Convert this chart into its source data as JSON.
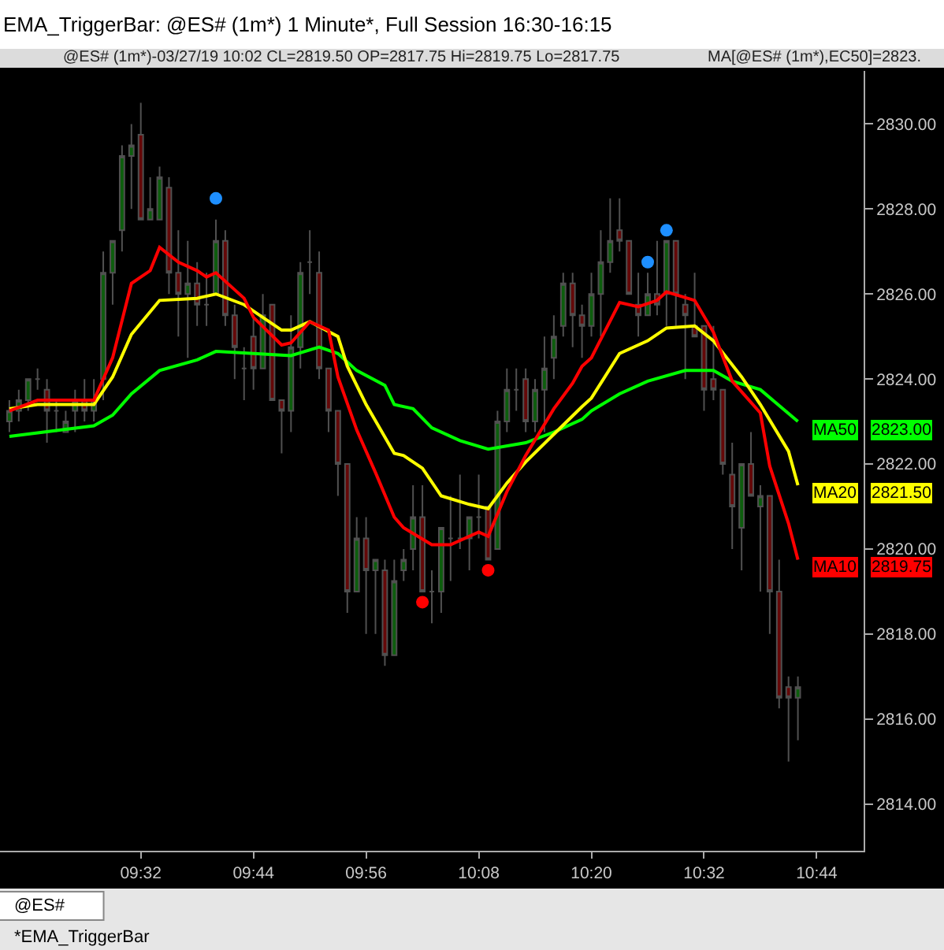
{
  "chart_data": {
    "type": "candlestick",
    "title": "EMA_TriggerBar: @ES# (1m*) 1 Minute*, Full Session 16:30-16:15",
    "x": [
      "--03-27T09:18",
      "--03-27T09:19",
      "--03-27T09:20",
      "--03-27T09:21",
      "--03-27T09:22",
      "--03-27T09:23",
      "--03-27T09:24",
      "--03-27T09:25",
      "--03-27T09:26",
      "--03-27T09:27",
      "--03-27T09:28",
      "--03-27T09:29",
      "--03-27T09:30",
      "--03-27T09:31",
      "--03-27T09:32",
      "--03-27T09:33",
      "--03-27T09:34",
      "--03-27T09:35",
      "--03-27T09:36",
      "--03-27T09:37",
      "--03-27T09:38",
      "--03-27T09:39",
      "--03-27T09:40",
      "--03-27T09:41",
      "--03-27T09:42",
      "--03-27T09:43",
      "--03-27T09:44",
      "--03-27T09:45",
      "--03-27T09:46",
      "--03-27T09:47",
      "--03-27T09:48",
      "--03-27T09:49",
      "--03-27T09:50",
      "--03-27T09:51",
      "--03-27T09:52",
      "--03-27T09:53",
      "--03-27T09:54",
      "--03-27T09:55",
      "--03-27T09:56",
      "--03-27T09:57",
      "--03-27T09:58",
      "--03-27T09:59",
      "--03-27T10:00",
      "--03-27T10:01",
      "--03-27T10:02",
      "--03-27T10:03",
      "--03-27T10:04",
      "--03-27T10:05",
      "--03-27T10:06",
      "--03-27T10:07",
      "--03-27T10:08",
      "--03-27T10:09",
      "--03-27T10:10",
      "--03-27T10:11",
      "--03-27T10:12",
      "--03-27T10:13",
      "--03-27T10:14",
      "--03-27T10:15",
      "--03-27T10:16",
      "--03-27T10:17",
      "--03-27T10:18",
      "--03-27T10:19",
      "--03-27T10:20",
      "--03-27T10:21",
      "--03-27T10:22",
      "--03-27T10:23",
      "--03-27T10:24",
      "--03-27T10:25",
      "--03-27T10:26",
      "--03-27T10:27",
      "--03-27T10:28",
      "--03-27T10:29",
      "--03-27T10:30",
      "--03-27T10:31",
      "--03-27T10:32",
      "--03-27T10:33",
      "--03-27T10:34",
      "--03-27T10:35",
      "--03-27T10:36",
      "--03-27T10:37",
      "--03-27T10:38",
      "--03-27T10:39",
      "--03-27T10:40",
      "--03-27T10:41",
      "--03-27T10:42"
    ],
    "ohlc": [
      [
        2823.0,
        2823.5,
        2822.75,
        2823.25
      ],
      [
        2823.25,
        2823.75,
        2823.0,
        2823.5
      ],
      [
        2823.5,
        2824.0,
        2823.25,
        2824.0
      ],
      [
        2824.0,
        2824.25,
        2823.75,
        2824.0
      ],
      [
        2823.75,
        2824.0,
        2822.5,
        2823.25
      ],
      [
        2823.25,
        2823.5,
        2822.75,
        2823.25
      ],
      [
        2822.75,
        2823.25,
        2822.75,
        2823.0
      ],
      [
        2823.25,
        2823.75,
        2822.75,
        2823.5
      ],
      [
        2823.5,
        2824.0,
        2823.0,
        2823.25
      ],
      [
        2823.25,
        2824.0,
        2823.0,
        2823.5
      ],
      [
        2824.0,
        2827.0,
        2823.5,
        2826.5
      ],
      [
        2826.5,
        2827.25,
        2825.75,
        2827.25
      ],
      [
        2827.5,
        2829.5,
        2827.0,
        2829.25
      ],
      [
        2829.25,
        2830.0,
        2828.0,
        2829.5
      ],
      [
        2829.75,
        2830.5,
        2827.75,
        2827.75
      ],
      [
        2827.75,
        2828.75,
        2827.75,
        2828.0
      ],
      [
        2827.75,
        2829.0,
        2827.75,
        2828.75
      ],
      [
        2828.5,
        2828.75,
        2826.0,
        2826.5
      ],
      [
        2826.5,
        2827.5,
        2825.0,
        2826.0
      ],
      [
        2826.0,
        2827.25,
        2824.5,
        2826.25
      ],
      [
        2826.25,
        2826.75,
        2825.25,
        2825.75
      ],
      [
        2825.75,
        2826.5,
        2825.25,
        2825.75
      ],
      [
        2826.0,
        2827.75,
        2826.0,
        2827.25
      ],
      [
        2827.25,
        2827.5,
        2825.25,
        2825.5
      ],
      [
        2825.5,
        2825.75,
        2824.0,
        2824.75
      ],
      [
        2824.25,
        2824.75,
        2823.5,
        2824.25
      ],
      [
        2825.0,
        2825.5,
        2823.75,
        2824.25
      ],
      [
        2824.25,
        2826.0,
        2824.25,
        2825.5
      ],
      [
        2825.75,
        2825.75,
        2823.5,
        2823.5
      ],
      [
        2823.5,
        2823.5,
        2822.25,
        2823.25
      ],
      [
        2823.25,
        2825.5,
        2822.75,
        2824.75
      ],
      [
        2824.75,
        2826.75,
        2824.25,
        2826.5
      ],
      [
        2826.75,
        2827.5,
        2826.0,
        2826.75
      ],
      [
        2826.5,
        2827.0,
        2824.0,
        2824.25
      ],
      [
        2824.25,
        2824.25,
        2822.75,
        2823.25
      ],
      [
        2823.25,
        2823.25,
        2821.25,
        2822.0
      ],
      [
        2822.0,
        2822.0,
        2818.5,
        2819.0
      ],
      [
        2819.0,
        2820.75,
        2819.0,
        2820.25
      ],
      [
        2820.25,
        2820.75,
        2818.0,
        2819.5
      ],
      [
        2819.5,
        2819.75,
        2818.0,
        2819.75
      ],
      [
        2819.5,
        2819.75,
        2817.25,
        2817.5
      ],
      [
        2817.5,
        2819.75,
        2817.5,
        2819.25
      ],
      [
        2819.5,
        2820.0,
        2819.25,
        2819.75
      ],
      [
        2820.0,
        2821.5,
        2819.5,
        2820.75
      ],
      [
        2820.75,
        2821.5,
        2819.0,
        2819.0
      ],
      [
        2819.0,
        2819.5,
        2818.25,
        2819.0
      ],
      [
        2819.0,
        2820.5,
        2818.5,
        2820.5
      ],
      [
        2820.25,
        2821.25,
        2819.25,
        2820.25
      ],
      [
        2820.25,
        2821.75,
        2820.0,
        2820.25
      ],
      [
        2820.25,
        2820.75,
        2819.5,
        2820.75
      ],
      [
        2820.75,
        2821.75,
        2820.25,
        2820.75
      ],
      [
        2821.0,
        2821.0,
        2819.75,
        2819.75
      ],
      [
        2820.0,
        2823.25,
        2820.0,
        2823.0
      ],
      [
        2823.0,
        2824.25,
        2822.75,
        2823.75
      ],
      [
        2823.75,
        2824.25,
        2823.25,
        2823.75
      ],
      [
        2824.0,
        2824.25,
        2822.75,
        2823.0
      ],
      [
        2823.0,
        2824.0,
        2822.75,
        2823.75
      ],
      [
        2823.75,
        2825.0,
        2822.75,
        2824.25
      ],
      [
        2824.5,
        2825.5,
        2824.0,
        2825.0
      ],
      [
        2825.25,
        2826.5,
        2825.0,
        2826.25
      ],
      [
        2826.25,
        2826.5,
        2824.75,
        2825.5
      ],
      [
        2825.5,
        2825.75,
        2824.5,
        2825.25
      ],
      [
        2825.25,
        2826.5,
        2825.0,
        2826.0
      ],
      [
        2826.0,
        2827.5,
        2825.0,
        2826.75
      ],
      [
        2826.75,
        2828.25,
        2826.5,
        2827.25
      ],
      [
        2827.5,
        2828.25,
        2827.0,
        2827.25
      ],
      [
        2827.25,
        2827.25,
        2826.0,
        2826.0
      ],
      [
        2825.75,
        2826.5,
        2825.0,
        2825.5
      ],
      [
        2825.5,
        2826.5,
        2825.5,
        2826.0
      ],
      [
        2826.0,
        2827.25,
        2825.5,
        2825.75
      ],
      [
        2826.0,
        2827.25,
        2825.25,
        2827.25
      ],
      [
        2827.25,
        2827.25,
        2825.25,
        2826.0
      ],
      [
        2825.75,
        2826.0,
        2824.0,
        2825.5
      ],
      [
        2825.25,
        2826.5,
        2825.0,
        2825.0
      ],
      [
        2825.25,
        2825.25,
        2823.25,
        2823.75
      ],
      [
        2824.0,
        2825.25,
        2823.5,
        2823.75
      ],
      [
        2823.75,
        2823.75,
        2821.75,
        2822.0
      ],
      [
        2821.75,
        2822.5,
        2820.0,
        2821.0
      ],
      [
        2820.5,
        2822.0,
        2819.5,
        2822.0
      ],
      [
        2822.0,
        2822.75,
        2821.25,
        2821.25
      ],
      [
        2821.0,
        2821.5,
        2819.0,
        2821.25
      ],
      [
        2821.25,
        2821.25,
        2818.0,
        2819.0
      ],
      [
        2819.0,
        2819.75,
        2816.25,
        2816.5
      ],
      [
        2816.75,
        2817.0,
        2815.0,
        2816.5
      ],
      [
        2816.5,
        2817.0,
        2815.5,
        2816.75
      ]
    ],
    "series": [
      {
        "name": "MA50",
        "type": "line",
        "color": "#00ff00",
        "x": [
          "--03-27T09:18",
          "--03-27T09:27",
          "--03-27T09:29",
          "--03-27T09:31",
          "--03-27T09:34",
          "--03-27T09:38",
          "--03-27T09:40",
          "--03-27T09:44",
          "--03-27T09:48",
          "--03-27T09:51",
          "--03-27T09:53",
          "--03-27T09:55",
          "--03-27T09:58",
          "--03-27T09:59",
          "--03-27T10:01",
          "--03-27T10:03",
          "--03-27T10:06",
          "--03-27T10:09",
          "--03-27T10:13",
          "--03-27T10:16",
          "--03-27T10:19",
          "--03-27T10:20",
          "--03-27T10:23",
          "--03-27T10:26",
          "--03-27T10:30",
          "--03-27T10:33",
          "--03-27T10:35",
          "--03-27T10:38",
          "--03-27T10:42"
        ],
        "values": [
          2822.65,
          2822.9,
          2823.15,
          2823.65,
          2824.2,
          2824.45,
          2824.65,
          2824.6,
          2824.55,
          2824.75,
          2824.6,
          2824.2,
          2823.85,
          2823.4,
          2823.3,
          2822.85,
          2822.55,
          2822.35,
          2822.5,
          2822.75,
          2823.05,
          2823.25,
          2823.65,
          2823.95,
          2824.2,
          2824.2,
          2823.95,
          2823.75,
          2823.0
        ]
      },
      {
        "name": "MA20",
        "type": "line",
        "color": "#ffff00",
        "x": [
          "--03-27T09:18",
          "--03-27T09:21",
          "--03-27T09:27",
          "--03-27T09:29",
          "--03-27T09:31",
          "--03-27T09:34",
          "--03-27T09:38",
          "--03-27T09:40",
          "--03-27T09:43",
          "--03-27T09:44",
          "--03-27T09:47",
          "--03-27T09:48",
          "--03-27T09:50",
          "--03-27T09:53",
          "--03-27T09:54",
          "--03-27T09:56",
          "--03-27T09:59",
          "--03-27T10:00",
          "--03-27T10:02",
          "--03-27T10:04",
          "--03-27T10:07",
          "--03-27T10:09",
          "--03-27T10:11",
          "--03-27T10:13",
          "--03-27T10:16",
          "--03-27T10:19",
          "--03-27T10:20",
          "--03-27T10:23",
          "--03-27T10:26",
          "--03-27T10:28",
          "--03-27T10:31",
          "--03-27T10:33",
          "--03-27T10:36",
          "--03-27T10:38",
          "--03-27T10:41",
          "--03-27T10:42"
        ],
        "values": [
          2823.3,
          2823.4,
          2823.4,
          2824.05,
          2825.05,
          2825.85,
          2825.9,
          2826.0,
          2825.75,
          2825.6,
          2825.15,
          2825.15,
          2825.35,
          2825.0,
          2824.3,
          2823.4,
          2822.25,
          2822.2,
          2821.9,
          2821.25,
          2821.05,
          2820.95,
          2821.55,
          2822.05,
          2822.7,
          2823.35,
          2823.55,
          2824.6,
          2824.9,
          2825.2,
          2825.25,
          2824.9,
          2824.05,
          2823.4,
          2822.3,
          2821.5
        ]
      },
      {
        "name": "MA10",
        "type": "line",
        "color": "#ff0000",
        "x": [
          "--03-27T09:18",
          "--03-27T09:21",
          "--03-27T09:27",
          "--03-27T09:29",
          "--03-27T09:31",
          "--03-27T09:33",
          "--03-27T09:34",
          "--03-27T09:36",
          "--03-27T09:38",
          "--03-27T09:39",
          "--03-27T09:40",
          "--03-27T09:43",
          "--03-27T09:44",
          "--03-27T09:47",
          "--03-27T09:48",
          "--03-27T09:50",
          "--03-27T09:52",
          "--03-27T09:53",
          "--03-27T09:55",
          "--03-27T09:57",
          "--03-27T09:59",
          "--03-27T10:00",
          "--03-27T10:03",
          "--03-27T10:05",
          "--03-27T10:08",
          "--03-27T10:09",
          "--03-27T10:11",
          "--03-27T10:13",
          "--03-27T10:16",
          "--03-27T10:18",
          "--03-27T10:19",
          "--03-27T10:20",
          "--03-27T10:23",
          "--03-27T10:25",
          "--03-27T10:27",
          "--03-27T10:28",
          "--03-27T10:31",
          "--03-27T10:33",
          "--03-27T10:35",
          "--03-27T10:38",
          "--03-27T10:39",
          "--03-27T10:41",
          "--03-27T10:42"
        ],
        "values": [
          2823.25,
          2823.5,
          2823.5,
          2824.5,
          2826.25,
          2826.55,
          2827.1,
          2826.75,
          2826.55,
          2826.4,
          2826.5,
          2825.9,
          2825.45,
          2824.8,
          2824.85,
          2825.35,
          2825.15,
          2824.05,
          2822.8,
          2821.8,
          2820.75,
          2820.5,
          2820.1,
          2820.1,
          2820.4,
          2820.3,
          2821.35,
          2822.2,
          2823.3,
          2823.9,
          2824.3,
          2824.5,
          2825.8,
          2825.7,
          2825.85,
          2826.05,
          2825.85,
          2825.1,
          2823.95,
          2823.2,
          2821.95,
          2820.6,
          2819.75
        ]
      },
      {
        "type": "scatter",
        "marker": "circle",
        "color": "#1e8fff",
        "x": [
          "--03-27T09:40",
          "--03-27T10:26",
          "--03-27T10:28"
        ],
        "values": [
          2828.25,
          2826.75,
          2827.5
        ]
      },
      {
        "type": "scatter",
        "marker": "circle",
        "color": "#ff0000",
        "x": [
          "--03-27T10:02",
          "--03-27T10:09"
        ],
        "values": [
          2818.75,
          2819.5
        ]
      }
    ],
    "xlim": [
      "--03-27T09:17",
      "--03-27T10:49"
    ],
    "xticks": [
      {
        "value": "--03-27T09:32",
        "label": "09:32"
      },
      {
        "value": "--03-27T09:44",
        "label": "09:44"
      },
      {
        "value": "--03-27T09:56",
        "label": "09:56"
      },
      {
        "value": "--03-27T10:08",
        "label": "10:08"
      },
      {
        "value": "--03-27T10:20",
        "label": "10:20"
      },
      {
        "value": "--03-27T10:32",
        "label": "10:32"
      },
      {
        "value": "--03-27T10:44",
        "label": "10:44"
      }
    ],
    "ylim": [
      2812.9,
      2831.25
    ],
    "yticks": [
      {
        "value": 2814,
        "label": "2814.00"
      },
      {
        "value": 2816,
        "label": "2816.00"
      },
      {
        "value": 2818,
        "label": "2818.00"
      },
      {
        "value": 2820,
        "label": "2820.00"
      },
      {
        "value": 2822,
        "label": "2822.00"
      },
      {
        "value": 2824,
        "label": "2824.00"
      },
      {
        "value": 2826,
        "label": "2826.00"
      },
      {
        "value": 2828,
        "label": "2828.00"
      },
      {
        "value": 2830,
        "label": "2830.00"
      }
    ],
    "grid": false,
    "legend": "right",
    "annotations": [
      "@ES# (1m*)-03/27/19 10:02 CL=2819.50 OP=2817.75 Hi=2819.75 Lo=2817.75",
      "MA[@ES# (1m*),EC50]=2823.",
      "@ES#",
      "*EMA_TriggerBar",
      "2823.00",
      "2821.50",
      "2819.75"
    ]
  }
}
